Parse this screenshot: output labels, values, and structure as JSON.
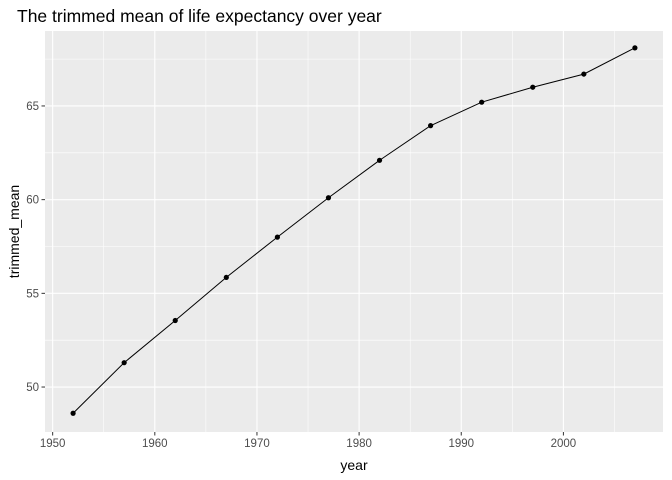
{
  "chart_data": {
    "type": "line",
    "title": "The trimmed mean of life expectancy over year",
    "xlabel": "year",
    "ylabel": "trimmed_mean",
    "xlim": [
      1949.25,
      2009.75
    ],
    "ylim": [
      47.6,
      69.0
    ],
    "x_ticks": [
      1950,
      1960,
      1970,
      1980,
      1990,
      2000
    ],
    "y_ticks": [
      50,
      55,
      60,
      65
    ],
    "grid": true,
    "points_shown": true,
    "series": [
      {
        "x": [
          1952,
          1957,
          1962,
          1967,
          1972,
          1977,
          1982,
          1987,
          1992,
          1997,
          2002,
          2007
        ],
        "values": [
          48.6,
          51.3,
          53.55,
          55.85,
          58.0,
          60.1,
          62.1,
          63.95,
          65.2,
          66.0,
          66.7,
          68.1
        ]
      }
    ],
    "colors": {
      "panel_background": "#ebebeb",
      "grid_major": "#ffffff",
      "line": "#000000",
      "point": "#000000",
      "tick_label": "#4d4d4d"
    }
  }
}
